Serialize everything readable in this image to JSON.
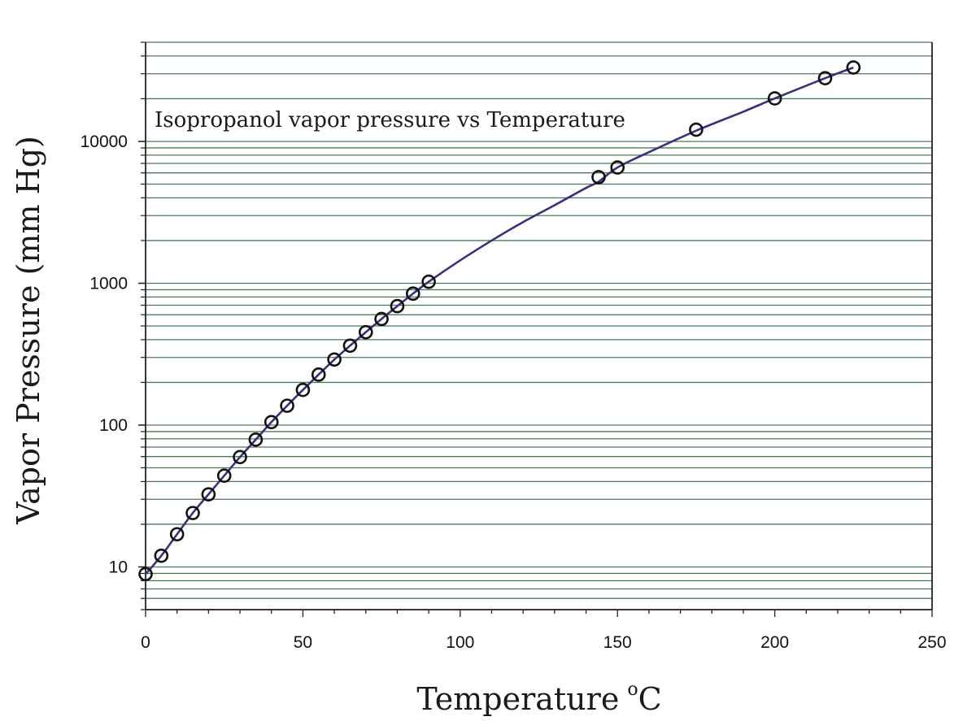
{
  "chart_data": {
    "type": "line",
    "title": "Isopropanol vapor pressure vs Temperature",
    "xlabel": "Temperature",
    "xlabel_sup": "o",
    "xlabel_unit": "C",
    "ylabel": "Vapor Pressure (mm Hg)",
    "xlim": [
      0,
      250
    ],
    "ylim": [
      5,
      50000
    ],
    "yscale": "log",
    "x_ticks": [
      0,
      50,
      100,
      150,
      200,
      250
    ],
    "y_ticks": [
      10,
      100,
      1000,
      10000
    ],
    "x_tick_labels": [
      "0",
      "50",
      "100",
      "150",
      "200",
      "250"
    ],
    "y_tick_labels": [
      "10",
      "100",
      "1000",
      "10000"
    ],
    "grid": "horizontal at log minor ticks",
    "colors": {
      "curve": "#3b2f80",
      "grid": "#4a7a55",
      "marker": "#111111",
      "axis": "#222222"
    },
    "series": [
      {
        "type": "scatter",
        "marker": "open-circle",
        "x": [
          0,
          5,
          10,
          15,
          20,
          25,
          30,
          35,
          40,
          45,
          50,
          55,
          60,
          65,
          70,
          75,
          80,
          85,
          90,
          144,
          150,
          175,
          200,
          216,
          225
        ],
        "y": [
          8.9,
          12.0,
          17.0,
          24.0,
          32.5,
          44.0,
          59.5,
          79.0,
          105,
          137,
          177,
          227,
          290,
          363,
          452,
          560,
          690,
          845,
          1025,
          5600,
          6550,
          12100,
          20100,
          27900,
          33200
        ]
      },
      {
        "type": "line",
        "x": [
          0,
          5,
          10,
          15,
          20,
          25,
          30,
          35,
          40,
          45,
          50,
          55,
          60,
          65,
          70,
          75,
          80,
          85,
          90,
          100,
          110,
          120,
          130,
          140,
          144,
          150,
          160,
          175,
          190,
          200,
          216,
          225
        ],
        "y": [
          8.9,
          12.0,
          17.0,
          24.0,
          32.5,
          44.0,
          59.5,
          79.0,
          105,
          137,
          177,
          227,
          290,
          363,
          452,
          560,
          690,
          845,
          1025,
          1450,
          2000,
          2700,
          3550,
          4700,
          5200,
          6550,
          8400,
          11900,
          16200,
          20100,
          27900,
          33200
        ]
      }
    ]
  }
}
